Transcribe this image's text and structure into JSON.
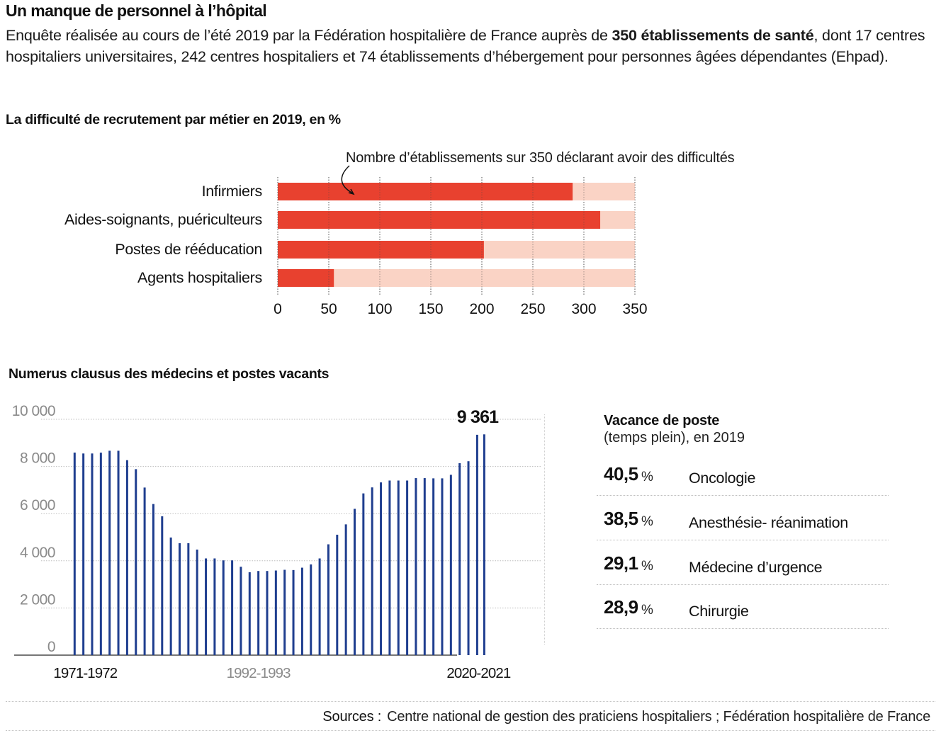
{
  "title": "Un manque de personnel à l’hôpital",
  "intro": {
    "part1": "Enquête réalisée au cours de l’été 2019 par la Fédération hospitalière de France auprès de ",
    "bold": "350 établissements de santé",
    "part2": ", dont 17 centres hospitaliers universitaires, 242 centres hospitaliers et 74 établissements d’hébergement pour personnes âgées dépendantes (Ehpad)."
  },
  "colors": {
    "bar_value": "#e8412f",
    "bar_background": "#fad3c5",
    "column": "#1f3e8f",
    "gridline": "#bdbdbd",
    "axis_tick_gray": "#8a8a8a"
  },
  "chart_data": [
    {
      "type": "bar",
      "orientation": "horizontal",
      "title": "La difficulté de recrutement par métier en 2019, en %",
      "annotation": "Nombre d’établissements sur 350 déclarant avoir des difficultés",
      "categories": [
        "Infirmiers",
        "Aides-soignants, puériculteurs",
        "Postes de rééducation",
        "Agents hospitaliers"
      ],
      "values": [
        289,
        316,
        202,
        55
      ],
      "total": 350,
      "xlim": [
        0,
        350
      ],
      "xticks": [
        "0",
        "50",
        "100",
        "150",
        "200",
        "250",
        "300",
        "350"
      ],
      "xtick_values": [
        0,
        50,
        100,
        150,
        200,
        250,
        300,
        350
      ],
      "grid": true
    },
    {
      "type": "bar",
      "orientation": "vertical",
      "title": "Numerus clausus des médecins et postes vacants",
      "x_labels": [
        {
          "index": 0,
          "label": "1971-1972",
          "style": "dark"
        },
        {
          "index": 21,
          "label": "1992-1993",
          "style": "gray"
        },
        {
          "index": 47,
          "label": "2020-2021",
          "style": "dark"
        }
      ],
      "values": [
        8588,
        8550,
        8550,
        8585,
        8666,
        8666,
        8266,
        7886,
        7106,
        6407,
        5886,
        4987,
        4747,
        4747,
        4476,
        4100,
        4100,
        4018,
        4018,
        3748,
        3517,
        3568,
        3568,
        3588,
        3618,
        3608,
        3708,
        3847,
        4100,
        4699,
        5106,
        5545,
        6203,
        6858,
        7112,
        7324,
        7403,
        7403,
        7403,
        7506,
        7506,
        7496,
        7496,
        7646,
        8141,
        8222,
        9343,
        9361
      ],
      "highlight": {
        "index": 47,
        "label": "9 361"
      },
      "ylim": [
        0,
        10000
      ],
      "yticks": [
        "0",
        "2 000",
        "4 000",
        "6 000",
        "8 000",
        "10 000"
      ],
      "ytick_values": [
        0,
        2000,
        4000,
        6000,
        8000,
        10000
      ],
      "grid": true
    }
  ],
  "vacance": {
    "title": "Vacance de poste",
    "subtitle": "(temps plein), en 2019",
    "rows": [
      {
        "value": "40,5",
        "unit": "%",
        "label": "Oncologie"
      },
      {
        "value": "38,5",
        "unit": "%",
        "label": "Anesthésie- réanimation"
      },
      {
        "value": "29,1",
        "unit": "%",
        "label": "Médecine d’urgence"
      },
      {
        "value": "28,9",
        "unit": "%",
        "label": "Chirurgie"
      }
    ]
  },
  "sources": {
    "label": "Sources :",
    "text": "Centre national de gestion des praticiens hospitaliers ; Fédération hospitalière de France"
  }
}
